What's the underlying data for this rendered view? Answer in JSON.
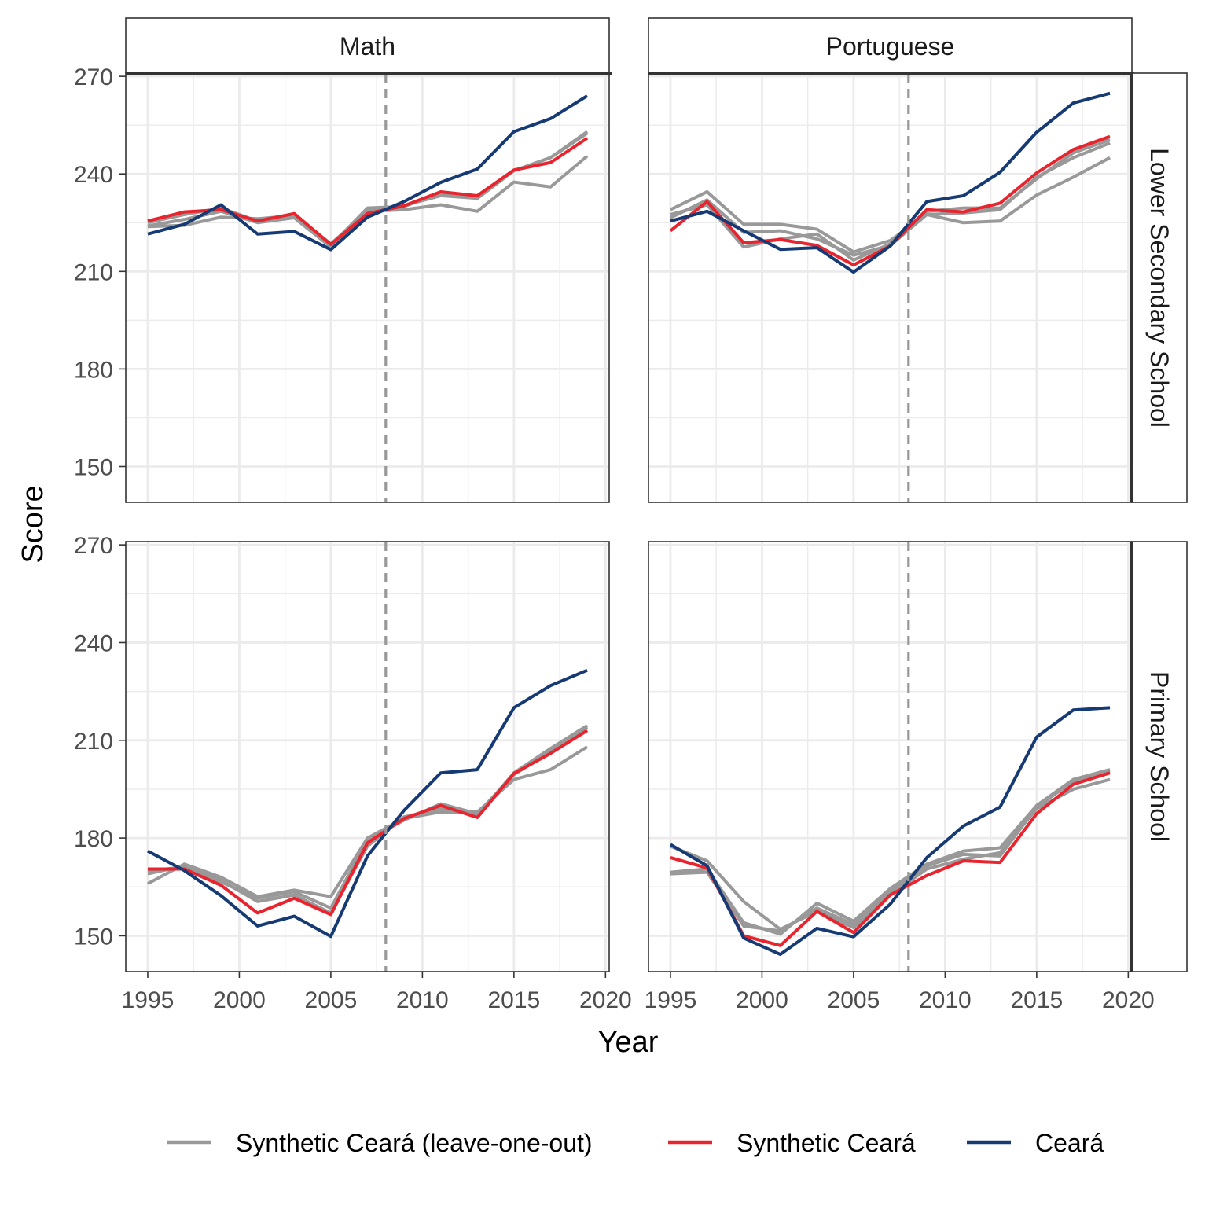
{
  "chart_data": {
    "type": "line",
    "xlabel": "Year",
    "ylabel": "Score",
    "xlim": [
      1993.8,
      2020.2
    ],
    "ylim": [
      139,
      271
    ],
    "x_ticks": [
      1995,
      2000,
      2005,
      2010,
      2015,
      2020
    ],
    "y_ticks": [
      150,
      180,
      210,
      240,
      270
    ],
    "reference_line": {
      "x": 2008,
      "style": "dashed",
      "color": "#999999"
    },
    "grid": true,
    "legend": {
      "placement": "bottom"
    },
    "columns": [
      "Math",
      "Portuguese"
    ],
    "rows": [
      "Lower Secondary School",
      "Primary School"
    ],
    "legend_entries": [
      {
        "key": "loo",
        "label": "Synthetic Ceará (leave-one-out)",
        "color": "#999999"
      },
      {
        "key": "synthetic",
        "label": "Synthetic Ceará",
        "color": "#e8242f"
      },
      {
        "key": "ceara",
        "label": "Ceará",
        "color": "#163a74"
      }
    ],
    "x": [
      1995,
      1997,
      1999,
      2001,
      2003,
      2005,
      2007,
      2009,
      2011,
      2013,
      2015,
      2017,
      2019
    ],
    "panels": [
      {
        "column": "Math",
        "row": "Lower Secondary School",
        "ceara": [
          221.5,
          224.5,
          230.5,
          221.5,
          222.3,
          216.7,
          226.7,
          231.5,
          237.4,
          241.5,
          253,
          257,
          264
        ],
        "synthetic": [
          225.5,
          228.3,
          229,
          225.5,
          227.8,
          218.3,
          227.8,
          230.2,
          234.5,
          233.3,
          241.2,
          243.5,
          251
        ],
        "loo": [
          [
            225,
            227.5,
            229.5,
            225.5,
            227.5,
            218,
            229.5,
            230,
            234,
            232.5,
            241,
            245,
            252.5
          ],
          [
            224,
            226,
            228.5,
            225,
            226.5,
            217.5,
            228.5,
            229,
            230.5,
            228.5,
            237.5,
            236,
            245.5
          ],
          [
            223.8,
            224.2,
            226.7,
            226.2,
            227.2,
            218.5,
            228.5,
            230.3,
            233.3,
            232.5,
            241,
            245,
            253
          ]
        ]
      },
      {
        "column": "Portuguese",
        "row": "Lower Secondary School",
        "ceara": [
          225.5,
          228.5,
          222.5,
          216.8,
          217.3,
          209.8,
          217.8,
          231.5,
          233.3,
          240.5,
          252.8,
          261.8,
          264.8
        ],
        "synthetic": [
          222.5,
          231.5,
          218.8,
          219.8,
          218,
          212,
          217.8,
          229,
          228.3,
          231,
          240.3,
          247.5,
          251.5
        ],
        "loo": [
          [
            229,
            234.5,
            224.5,
            224.5,
            223,
            216,
            219.5,
            227.5,
            225,
            225.5,
            233.5,
            239,
            245
          ],
          [
            227.5,
            230.5,
            217.5,
            220,
            221.5,
            213.5,
            218.5,
            228.5,
            229.5,
            229.5,
            238.5,
            246.5,
            250.5
          ],
          [
            226.5,
            232,
            222,
            222.5,
            220,
            215,
            218,
            227.5,
            228,
            229,
            239,
            245,
            249.5
          ]
        ]
      },
      {
        "column": "Math",
        "row": "Primary School",
        "ceara": [
          176,
          170,
          162.3,
          153,
          156,
          149.8,
          174.5,
          188.5,
          200,
          201,
          220,
          226.8,
          231.5
        ],
        "synthetic": [
          170.5,
          170.5,
          165.5,
          157,
          161.5,
          156.5,
          178.5,
          186,
          190,
          186.3,
          199.8,
          206,
          213
        ],
        "loo": [
          [
            166,
            172,
            168,
            162,
            164,
            162,
            180,
            186,
            188,
            188,
            198,
            201,
            208
          ],
          [
            169,
            171.5,
            167,
            160.5,
            162.5,
            157,
            177.5,
            186.5,
            189,
            187,
            200,
            207.5,
            214.5
          ],
          [
            170,
            171,
            166.5,
            161.5,
            163.5,
            158.5,
            179.5,
            185.5,
            190.5,
            187.5,
            199.5,
            206.5,
            214
          ]
        ]
      },
      {
        "column": "Portuguese",
        "row": "Primary School",
        "ceara": [
          178,
          171.5,
          149.3,
          144.3,
          152.3,
          149.7,
          159.7,
          174,
          183.7,
          189.5,
          211,
          219.3,
          220
        ],
        "synthetic": [
          174,
          170.8,
          150,
          147,
          157.5,
          151,
          162.5,
          168.5,
          173,
          172.5,
          187.5,
          196.5,
          200
        ],
        "loo": [
          [
            169.5,
            170.5,
            154,
            150.5,
            160,
            154.5,
            164.5,
            172,
            176,
            177,
            190,
            198,
            201
          ],
          [
            177.5,
            173,
            160.5,
            152,
            157.5,
            152.5,
            162.5,
            170.5,
            173.5,
            175.5,
            189,
            195,
            198
          ],
          [
            169,
            169.5,
            153,
            151.5,
            158.5,
            153.5,
            163.5,
            171.5,
            175,
            174.5,
            189.5,
            197.5,
            200.5
          ]
        ]
      }
    ]
  }
}
